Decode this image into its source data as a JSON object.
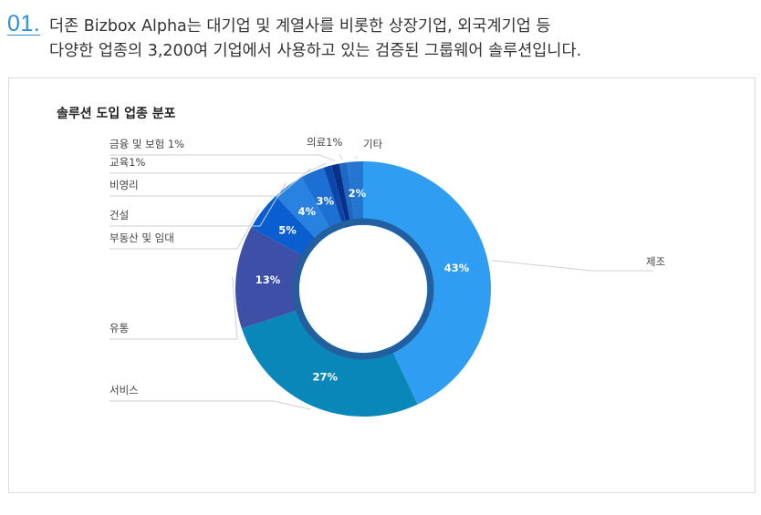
{
  "intro": {
    "number": "01.",
    "line1": "더존 Bizbox Alpha는 대기업 및 계열사를 비롯한 상장기업, 외국계기업 등",
    "line2": "다양한 업종의 3,200여 기업에서 사용하고 있는 검증된 그룹웨어 솔루션입니다."
  },
  "chart_data": {
    "type": "pie",
    "title": "솔루션 도입 업종 분포",
    "slices": [
      {
        "label": "제조",
        "value": 43,
        "value_label": "43%",
        "color": "#2e9df2"
      },
      {
        "label": "서비스",
        "value": 27,
        "value_label": "27%",
        "color": "#0a87b9"
      },
      {
        "label": "유통",
        "value": 13,
        "value_label": "13%",
        "color": "#3d4fa6"
      },
      {
        "label": "부동산 및 임대",
        "value": 5,
        "value_label": "5%",
        "color": "#0a5ed0"
      },
      {
        "label": "건설",
        "value": 4,
        "value_label": "4%",
        "color": "#2a82e0"
      },
      {
        "label": "비영리",
        "value": 3,
        "value_label": "3%",
        "color": "#1d6fd3"
      },
      {
        "label": "교육1%",
        "value": 1,
        "value_label": "",
        "color": "#0b46a8"
      },
      {
        "label": "금융 및 보험 1%",
        "value": 1,
        "value_label": "",
        "color": "#08328a"
      },
      {
        "label": "의료1%",
        "value": 1,
        "value_label": "",
        "color": "#1f69c6"
      },
      {
        "label": "기타",
        "value": 2,
        "value_label": "2%",
        "color": "#2576cf"
      }
    ]
  }
}
